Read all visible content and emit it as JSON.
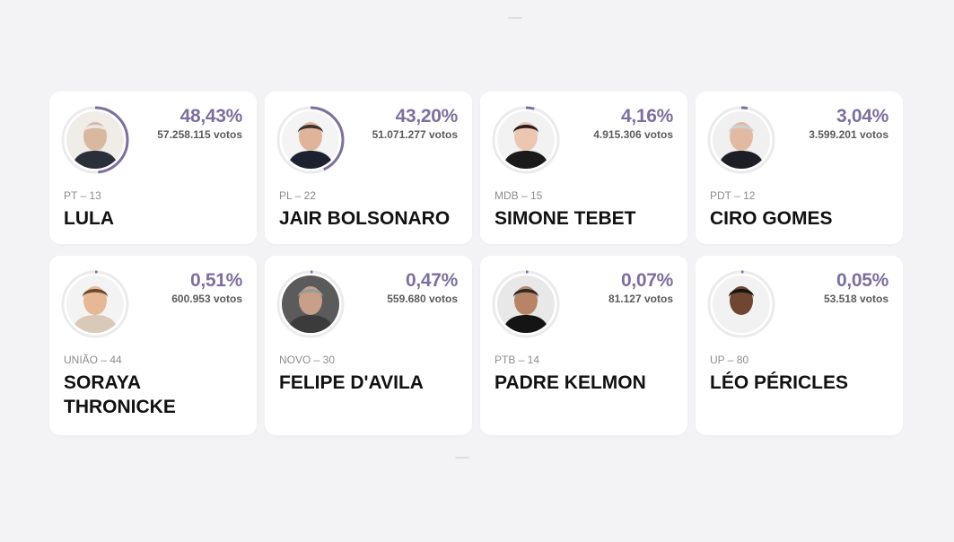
{
  "votes_suffix": "votos",
  "colors": {
    "accent": "#7e6f9e",
    "ring_track": "#ebebee"
  },
  "candidates": [
    {
      "name": "LULA",
      "party": "PT – 13",
      "percent": "48,43%",
      "votes": "57.258.115",
      "share": 0.4843,
      "skin": "#d9b8a0",
      "hair": "#e8e8e8",
      "bg": "#f0ece8",
      "suit": "#2b2f3a",
      "avatar_icon": "candidate-photo"
    },
    {
      "name": "JAIR BOLSONARO",
      "party": "PL – 22",
      "percent": "43,20%",
      "votes": "51.071.277",
      "share": 0.432,
      "skin": "#e0b49a",
      "hair": "#3a332d",
      "bg": "#f4f4f4",
      "suit": "#1c2230",
      "avatar_icon": "candidate-photo"
    },
    {
      "name": "SIMONE TEBET",
      "party": "MDB – 15",
      "percent": "4,16%",
      "votes": "4.915.306",
      "share": 0.0416,
      "skin": "#ecc6b0",
      "hair": "#2a1f1c",
      "bg": "#f2f2f2",
      "suit": "#1a1a1a",
      "avatar_icon": "candidate-photo"
    },
    {
      "name": "CIRO GOMES",
      "party": "PDT – 12",
      "percent": "3,04%",
      "votes": "3.599.201",
      "share": 0.0304,
      "skin": "#e2b9a2",
      "hair": "#cfcfcf",
      "bg": "#f0f0f0",
      "suit": "#1d1f26",
      "avatar_icon": "candidate-photo"
    },
    {
      "name": "SORAYA THRONICKE",
      "party": "UNIÃO – 44",
      "percent": "0,51%",
      "votes": "600.953",
      "share": 0.0051,
      "skin": "#e6b896",
      "hair": "#6b4a2e",
      "bg": "#f3f3f3",
      "suit": "#d8c9b8",
      "avatar_icon": "candidate-photo"
    },
    {
      "name": "FELIPE D'AVILA",
      "party": "NOVO – 30",
      "percent": "0,47%",
      "votes": "559.680",
      "share": 0.0047,
      "skin": "#c8a08a",
      "hair": "#9b9b9b",
      "bg": "#5b5b5b",
      "suit": "#3b3b3b",
      "avatar_icon": "candidate-photo"
    },
    {
      "name": "PADRE KELMON",
      "party": "PTB – 14",
      "percent": "0,07%",
      "votes": "81.127",
      "share": 0.0007,
      "skin": "#b88466",
      "hair": "#2b2b2b",
      "bg": "#e8e8e8",
      "suit": "#141414",
      "avatar_icon": "candidate-photo"
    },
    {
      "name": "LÉO PÉRICLES",
      "party": "UP – 80",
      "percent": "0,05%",
      "votes": "53.518",
      "share": 0.0005,
      "skin": "#6e4632",
      "hair": "#141414",
      "bg": "#f2f2f2",
      "suit": "#f1f1f1",
      "avatar_icon": "candidate-photo"
    }
  ]
}
